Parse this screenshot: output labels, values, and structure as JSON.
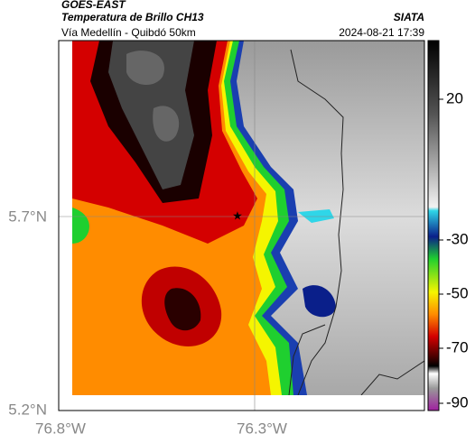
{
  "header": {
    "source": "GOES-EAST",
    "title": "Temperatura de Brillo CH13",
    "brand": "SIATA",
    "subtitle": "Vía Medellín - Quibdó 50km",
    "timestamp": "2024-08-21 17:39"
  },
  "map": {
    "lat_labels": [
      "5.7°N",
      "5.2°N"
    ],
    "lon_labels": [
      "76.8°W",
      "76.3°W"
    ]
  },
  "colorbar": {
    "ticks": [
      20,
      -30,
      -50,
      -70,
      -90
    ]
  }
}
